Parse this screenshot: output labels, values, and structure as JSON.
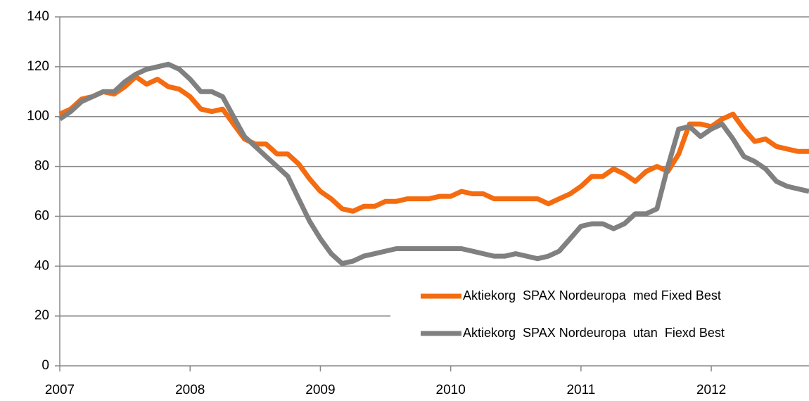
{
  "chart_data": {
    "type": "line",
    "x": [
      2007,
      2007.083,
      2007.167,
      2007.25,
      2007.333,
      2007.417,
      2007.5,
      2007.583,
      2007.667,
      2007.75,
      2007.833,
      2007.917,
      2008,
      2008.083,
      2008.167,
      2008.25,
      2008.333,
      2008.417,
      2008.5,
      2008.583,
      2008.667,
      2008.75,
      2008.833,
      2008.917,
      2009,
      2009.083,
      2009.167,
      2009.25,
      2009.333,
      2009.417,
      2009.5,
      2009.583,
      2009.667,
      2009.75,
      2009.833,
      2009.917,
      2010,
      2010.083,
      2010.167,
      2010.25,
      2010.333,
      2010.417,
      2010.5,
      2010.583,
      2010.667,
      2010.75,
      2010.833,
      2010.917,
      2011,
      2011.083,
      2011.167,
      2011.25,
      2011.333,
      2011.417,
      2011.5,
      2011.583,
      2011.667,
      2011.75,
      2011.833,
      2011.917,
      2012,
      2012.083,
      2012.167,
      2012.25,
      2012.333,
      2012.417,
      2012.5,
      2012.583,
      2012.667,
      2012.75
    ],
    "series": [
      {
        "name": "Aktiekorg  SPAX Nordeuropa  med Fixed Best",
        "color": "#f56b0f",
        "values": [
          101,
          103,
          107,
          108,
          110,
          109,
          112,
          116,
          113,
          115,
          112,
          111,
          108,
          103,
          102,
          103,
          97,
          91,
          89,
          89,
          85,
          85,
          81,
          75,
          70,
          67,
          63,
          62,
          64,
          64,
          66,
          66,
          67,
          67,
          67,
          68,
          68,
          70,
          69,
          69,
          67,
          67,
          67,
          67,
          67,
          65,
          67,
          69,
          72,
          76,
          76,
          79,
          77,
          74,
          78,
          80,
          78,
          85,
          97,
          97,
          96,
          99,
          101,
          95,
          90,
          91,
          88,
          87,
          86,
          86
        ]
      },
      {
        "name": "Aktiekorg  SPAX Nordeuropa  utan  Fiexd Best",
        "color": "#808080",
        "values": [
          99,
          102,
          106,
          108,
          110,
          110,
          114,
          117,
          119,
          120,
          121,
          119,
          115,
          110,
          110,
          108,
          100,
          92,
          88,
          84,
          80,
          76,
          67,
          58,
          51,
          45,
          41,
          42,
          44,
          45,
          46,
          47,
          47,
          47,
          47,
          47,
          47,
          47,
          46,
          45,
          44,
          44,
          45,
          44,
          43,
          44,
          46,
          51,
          56,
          57,
          57,
          55,
          57,
          61,
          61,
          63,
          80,
          95,
          96,
          92,
          95,
          97,
          91,
          84,
          82,
          79,
          74,
          72,
          71,
          70
        ]
      }
    ],
    "xlim": [
      2007,
      2012.75
    ],
    "xticks": [
      2007,
      2008,
      2009,
      2010,
      2011,
      2012
    ],
    "ylim": [
      0,
      140
    ],
    "yticks": [
      0,
      20,
      40,
      60,
      80,
      100,
      120,
      140
    ],
    "grid": true
  }
}
